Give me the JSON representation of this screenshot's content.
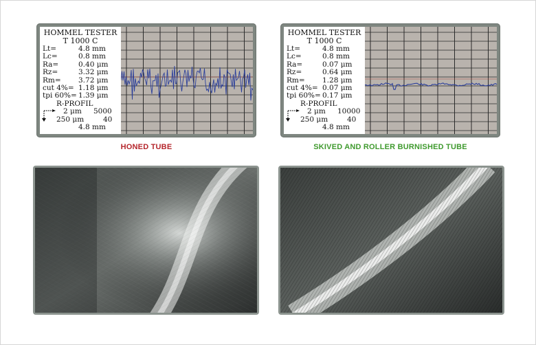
{
  "honed": {
    "caption": "HONED TUBE",
    "caption_color": "#b5262c",
    "tester": {
      "title1": "HOMMEL TESTER",
      "title2": "T 1000 C",
      "params": [
        {
          "k": "Lt=",
          "v": "4.8 mm"
        },
        {
          "k": "Lc=",
          "v": "0.8 mm"
        },
        {
          "k": "Ra=",
          "v": "0.40 μm"
        },
        {
          "k": "Rz=",
          "v": "3.32 μm"
        },
        {
          "k": "Rm=",
          "v": "3.72 μm"
        },
        {
          "k": "cut 4%=",
          "v": "1.18 μm"
        },
        {
          "k": "tpi 60%=",
          "v": "1.39 μm"
        }
      ],
      "profile": "R-PROFIL",
      "scale_v": "2 μm",
      "scale_v_mag": "5000",
      "scale_h": "250 μm",
      "scale_h_mag": "40",
      "length": "4.8 mm"
    }
  },
  "skived": {
    "caption": "SKIVED AND ROLLER BURNISHED TUBE",
    "caption_color": "#3f9a2e",
    "tester": {
      "title1": "HOMMEL TESTER",
      "title2": "T 1000 C",
      "params": [
        {
          "k": "Lt=",
          "v": "4.8 mm"
        },
        {
          "k": "Lc=",
          "v": "0.8 mm"
        },
        {
          "k": "Ra=",
          "v": "0.07 μm"
        },
        {
          "k": "Rz=",
          "v": "0.64 μm"
        },
        {
          "k": "Rm=",
          "v": "1.28 μm"
        },
        {
          "k": "cut 4%=",
          "v": "0.07 μm"
        },
        {
          "k": "tpi 60%=",
          "v": "0.17 μm"
        }
      ],
      "profile": "R-PROFIL",
      "scale_v": "2 μm",
      "scale_v_mag": "10000",
      "scale_h": "250 μm",
      "scale_h_mag": "40",
      "length": "4.8 mm"
    }
  },
  "colors": {
    "trace": "#2b3f9b",
    "grid": "#2a2a2a",
    "graph_bg": "#b9b3ad",
    "frame": "#7e8680"
  }
}
